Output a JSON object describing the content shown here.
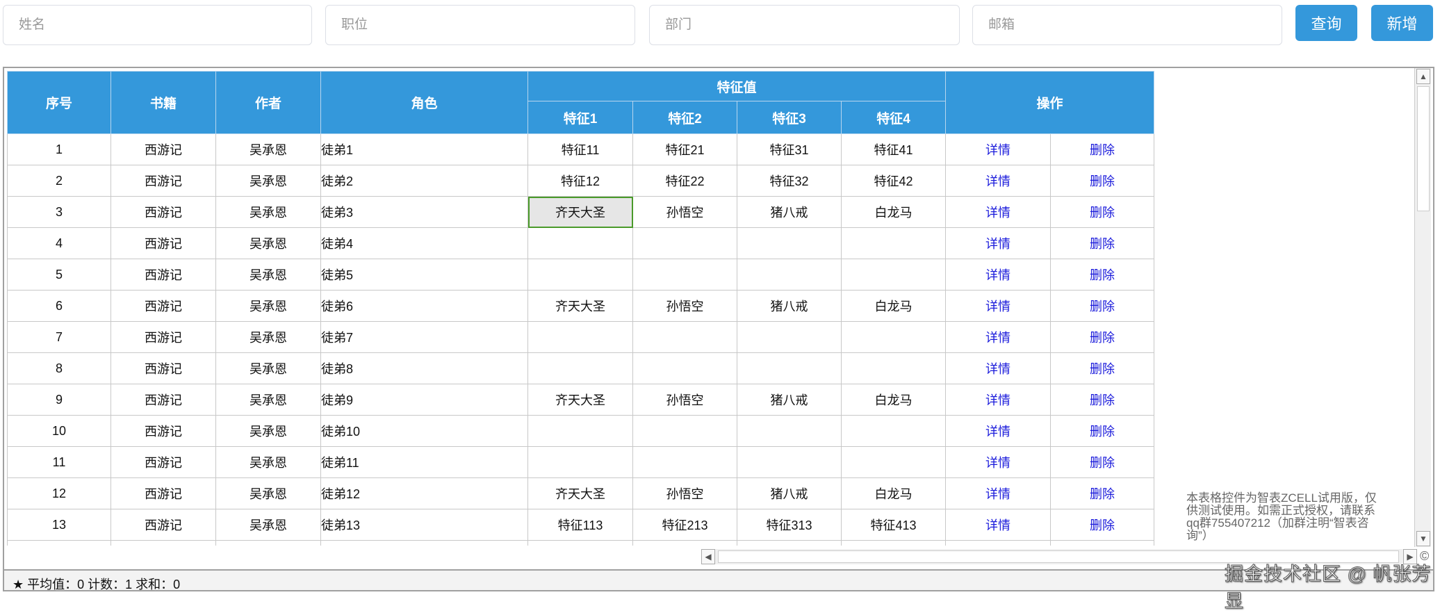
{
  "search": {
    "name_placeholder": "姓名",
    "position_placeholder": "职位",
    "department_placeholder": "部门",
    "email_placeholder": "邮箱",
    "query_label": "查询",
    "add_label": "新增"
  },
  "table": {
    "headers": {
      "index": "序号",
      "book": "书籍",
      "author": "作者",
      "role": "角色",
      "features": "特征值",
      "f1": "特征1",
      "f2": "特征2",
      "f3": "特征3",
      "f4": "特征4",
      "actions": "操作"
    },
    "selected_cell": {
      "row": 3,
      "column": "特征1"
    },
    "rows": [
      [
        "1",
        "西游记",
        "吴承恩",
        "徒弟1",
        "特征11",
        "特征21",
        "特征31",
        "特征41",
        "详情",
        "删除"
      ],
      [
        "2",
        "西游记",
        "吴承恩",
        "徒弟2",
        "特征12",
        "特征22",
        "特征32",
        "特征42",
        "详情",
        "删除"
      ],
      [
        "3",
        "西游记",
        "吴承恩",
        "徒弟3",
        "齐天大圣",
        "孙悟空",
        "猪八戒",
        "白龙马",
        "详情",
        "删除"
      ],
      [
        "4",
        "西游记",
        "吴承恩",
        "徒弟4",
        "",
        "",
        "",
        "",
        "详情",
        "删除"
      ],
      [
        "5",
        "西游记",
        "吴承恩",
        "徒弟5",
        "",
        "",
        "",
        "",
        "详情",
        "删除"
      ],
      [
        "6",
        "西游记",
        "吴承恩",
        "徒弟6",
        "齐天大圣",
        "孙悟空",
        "猪八戒",
        "白龙马",
        "详情",
        "删除"
      ],
      [
        "7",
        "西游记",
        "吴承恩",
        "徒弟7",
        "",
        "",
        "",
        "",
        "详情",
        "删除"
      ],
      [
        "8",
        "西游记",
        "吴承恩",
        "徒弟8",
        "",
        "",
        "",
        "",
        "详情",
        "删除"
      ],
      [
        "9",
        "西游记",
        "吴承恩",
        "徒弟9",
        "齐天大圣",
        "孙悟空",
        "猪八戒",
        "白龙马",
        "详情",
        "删除"
      ],
      [
        "10",
        "西游记",
        "吴承恩",
        "徒弟10",
        "",
        "",
        "",
        "",
        "详情",
        "删除"
      ],
      [
        "11",
        "西游记",
        "吴承恩",
        "徒弟11",
        "",
        "",
        "",
        "",
        "详情",
        "删除"
      ],
      [
        "12",
        "西游记",
        "吴承恩",
        "徒弟12",
        "齐天大圣",
        "孙悟空",
        "猪八戒",
        "白龙马",
        "详情",
        "删除"
      ],
      [
        "13",
        "西游记",
        "吴承恩",
        "徒弟13",
        "特征113",
        "特征213",
        "特征313",
        "特征413",
        "详情",
        "删除"
      ],
      [
        "",
        "",
        "",
        "",
        "",
        "",
        "",
        "",
        "",
        ""
      ]
    ]
  },
  "trial_notice": "本表格控件为智表ZCELL试用版，仅供测试使用。如需正式授权，请联系qq群755407212（加群注明“智表咨询”）",
  "status_bar": "★ 平均值：0   计数：1   求和：0",
  "copyright_symbol": "©",
  "watermark": "掘金技术社区 @ 帆张芳显",
  "colors": {
    "header": "#3498db",
    "link": "#1a1adb",
    "selection_border": "#4a9a2a"
  }
}
